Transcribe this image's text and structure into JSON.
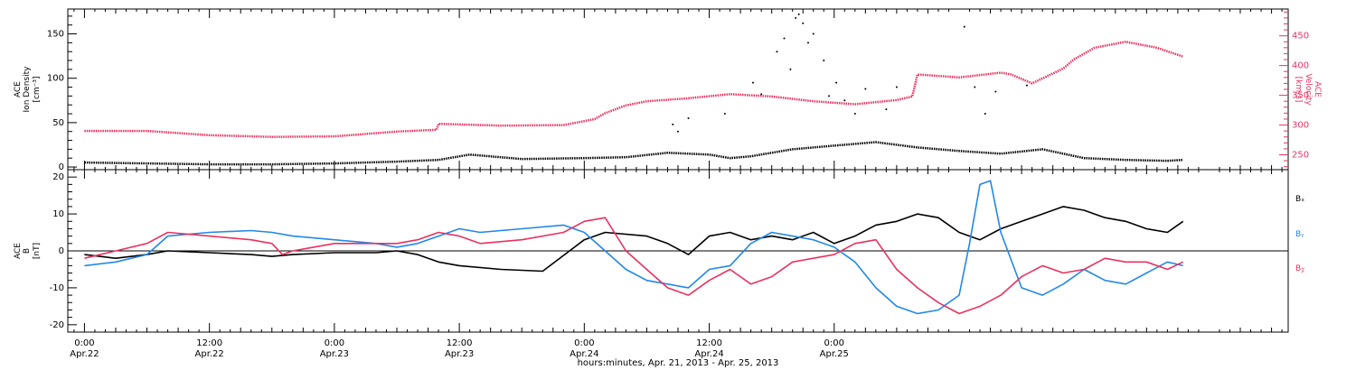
{
  "chart_data": [
    {
      "type": "scatter",
      "panel": "top",
      "left_axis": {
        "label_lines": [
          "ACE",
          "Ion Density",
          "[cm⁻³]"
        ],
        "ylim": [
          -3,
          178
        ],
        "ticks": [
          0,
          50,
          100,
          150
        ],
        "color": "#000000"
      },
      "right_axis": {
        "label_lines": [
          "ACE",
          "Velocity",
          "[km/s]"
        ],
        "ylim": [
          225,
          495
        ],
        "ticks": [
          250,
          300,
          350,
          400,
          450
        ],
        "color": "#e8325f"
      },
      "series": [
        {
          "axis": "left",
          "color": "#000000",
          "x": [
            0,
            6,
            12,
            18,
            24,
            30,
            34,
            37,
            42,
            48,
            52,
            56,
            60,
            62,
            64,
            68,
            72,
            76,
            80,
            84,
            88,
            92,
            96,
            100,
            104,
            105.5
          ],
          "y": [
            5,
            4,
            3,
            3,
            4,
            6,
            8,
            14,
            9,
            10,
            11,
            16,
            14,
            10,
            12,
            20,
            24,
            28,
            22,
            18,
            15,
            20,
            10,
            8,
            7,
            8
          ]
        },
        {
          "axis": "right",
          "color": "#e8325f",
          "x": [
            0,
            6,
            12,
            18,
            24,
            30,
            33.8,
            34,
            40,
            46,
            49,
            50,
            52,
            54,
            58,
            62,
            66,
            70,
            74,
            78,
            79.5,
            80,
            84,
            88,
            89,
            91,
            94,
            95,
            97,
            100,
            103,
            105.5
          ],
          "y": [
            290,
            290,
            283,
            280,
            281,
            289,
            292,
            302,
            299,
            300,
            310,
            320,
            333,
            340,
            345,
            352,
            348,
            340,
            335,
            342,
            348,
            385,
            380,
            388,
            385,
            370,
            395,
            410,
            430,
            440,
            430,
            415
          ]
        }
      ],
      "outliers": {
        "color": "#000000",
        "x": [
          56.5,
          57,
          58,
          61.5,
          64.2,
          65,
          66.5,
          67.2,
          67.8,
          68.3,
          68.6,
          69,
          69.5,
          70,
          71,
          71.5,
          72.2,
          73,
          74,
          75,
          77,
          78,
          84.5,
          85.5,
          86.5,
          87.5,
          90.5
        ],
        "y": [
          48,
          40,
          55,
          60,
          95,
          82,
          130,
          145,
          110,
          168,
          172,
          162,
          140,
          150,
          120,
          80,
          95,
          75,
          60,
          88,
          65,
          90,
          158,
          90,
          60,
          85,
          92
        ]
      }
    },
    {
      "type": "line",
      "panel": "bottom",
      "left_axis": {
        "label_lines": [
          "ACE",
          "B",
          "[nT]"
        ],
        "ylim": [
          -22,
          22
        ],
        "ticks": [
          -20,
          -10,
          0,
          10,
          20
        ]
      },
      "zero_line": true,
      "legend": [
        "Bₓ",
        "Bᵧ",
        "B𝓏"
      ],
      "series": [
        {
          "name": "Bₓ",
          "color": "#000000",
          "x": [
            0,
            3,
            6,
            8,
            12,
            16,
            18,
            20,
            24,
            28,
            30,
            32,
            34,
            36,
            40,
            44,
            48,
            50,
            54,
            56,
            58,
            60,
            62,
            64,
            66,
            68,
            70,
            72,
            74,
            76,
            78,
            80,
            82,
            84,
            86,
            88,
            90,
            92,
            94,
            96,
            98,
            100,
            102,
            104,
            105.5
          ],
          "y": [
            -1,
            -2,
            -1,
            0,
            -0.5,
            -1,
            -1.5,
            -1,
            -0.5,
            -0.5,
            0,
            -1,
            -3,
            -4,
            -5,
            -5.5,
            3,
            5,
            4,
            2,
            -1,
            4,
            5,
            3,
            4,
            3,
            5,
            2,
            4,
            7,
            8,
            10,
            9,
            5,
            3,
            6,
            8,
            10,
            12,
            11,
            9,
            8,
            6,
            5,
            8
          ]
        },
        {
          "name": "Bᵧ",
          "color": "#2288e8",
          "x": [
            0,
            3,
            6,
            8,
            12,
            16,
            18,
            20,
            24,
            28,
            30,
            32,
            34,
            36,
            38,
            42,
            46,
            48,
            50,
            52,
            54,
            56,
            58,
            60,
            62,
            64,
            66,
            68,
            70,
            72,
            74,
            76,
            78,
            80,
            82,
            84,
            85,
            86,
            87,
            88,
            90,
            92,
            94,
            96,
            98,
            100,
            102,
            104,
            105.5
          ],
          "y": [
            -4,
            -3,
            -1,
            4,
            5,
            5.5,
            5,
            4,
            3,
            2,
            1,
            2,
            4,
            6,
            5,
            6,
            7,
            5,
            0,
            -5,
            -8,
            -9,
            -10,
            -5,
            -4,
            2,
            5,
            4,
            3,
            1,
            -3,
            -10,
            -15,
            -17,
            -16,
            -12,
            2,
            18,
            19,
            5,
            -10,
            -12,
            -9,
            -5,
            -8,
            -9,
            -6,
            -3,
            -4
          ]
        },
        {
          "name": "B𝓏",
          "color": "#e8325f",
          "x": [
            0,
            3,
            6,
            8,
            12,
            16,
            18,
            19,
            20,
            22,
            24,
            28,
            30,
            32,
            34,
            36,
            38,
            42,
            46,
            48,
            50,
            52,
            54,
            56,
            58,
            60,
            62,
            64,
            66,
            68,
            70,
            72,
            74,
            76,
            78,
            80,
            82,
            84,
            86,
            88,
            90,
            92,
            94,
            96,
            98,
            100,
            102,
            104,
            105.5
          ],
          "y": [
            -2,
            0,
            2,
            5,
            4,
            3,
            2,
            -1,
            0,
            1,
            2,
            2,
            2,
            3,
            5,
            4,
            2,
            3,
            5,
            8,
            9,
            0,
            -5,
            -10,
            -12,
            -8,
            -5,
            -9,
            -7,
            -3,
            -2,
            -1,
            2,
            3,
            -5,
            -10,
            -14,
            -17,
            -15,
            -12,
            -7,
            -4,
            -6,
            -5,
            -2,
            -3,
            -3,
            -5,
            -3
          ]
        }
      ],
      "xaxis": {
        "title": "hours:minutes, Apr. 21, 2013 - Apr. 25, 2013",
        "xlim": [
          -1.6,
          115.6
        ],
        "ticks": [
          {
            "x": 0,
            "time": "0:00",
            "date": "Apr.22"
          },
          {
            "x": 12,
            "time": "12:00",
            "date": "Apr.22"
          },
          {
            "x": 24,
            "time": "0:00",
            "date": "Apr.23"
          },
          {
            "x": 36,
            "time": "12:00",
            "date": "Apr.23"
          },
          {
            "x": 48,
            "time": "0:00",
            "date": "Apr.24"
          },
          {
            "x": 60,
            "time": "12:00",
            "date": "Apr.24"
          },
          {
            "x": 72,
            "time": "0:00",
            "date": "Apr.25"
          }
        ]
      }
    }
  ]
}
